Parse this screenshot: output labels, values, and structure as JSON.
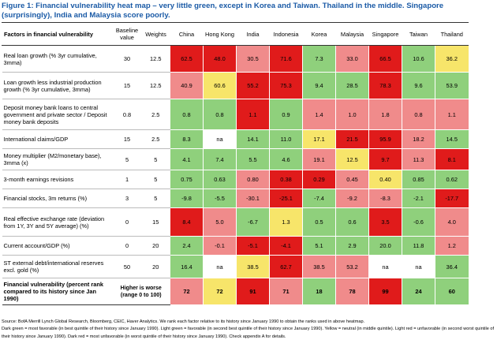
{
  "title": "Figure 1: Financial vulnerability heat map – very little green, except in Korea and Taiwan. Thailand in the middle. Singapore (surprisingly), India and Malaysia score poorly.",
  "headers": {
    "factor": "Factors in financial vulnerability",
    "baseline": "Baseline value",
    "weights": "Weights"
  },
  "legend_colors": {
    "dark_green": "#1fa84a",
    "light_green": "#8fd07c",
    "yellow": "#f7e56a",
    "light_red": "#f08b8b",
    "dark_red": "#e01b1b"
  },
  "chart_data": {
    "type": "heatmap",
    "title": "Financial vulnerability heat map",
    "columns": [
      "China",
      "Hong Kong",
      "India",
      "Indonesia",
      "Korea",
      "Malaysia",
      "Singapore",
      "Taiwan",
      "Thailand"
    ],
    "rows": [
      {
        "factor": "Real loan growth (% 3yr cumulative, 3mma)",
        "baseline": "30",
        "weight": "12.5",
        "values": [
          "62.5",
          "48.0",
          "30.5",
          "71.6",
          "7.3",
          "33.0",
          "66.5",
          "10.6",
          "36.2"
        ],
        "quintile": [
          "dark_red",
          "dark_red",
          "light_red",
          "dark_red",
          "light_green",
          "light_red",
          "dark_red",
          "light_green",
          "yellow"
        ]
      },
      {
        "factor": "Loan growth less industrial production growth (% 3yr cumulative, 3mma)",
        "baseline": "15",
        "weight": "12.5",
        "values": [
          "40.9",
          "60.6",
          "55.2",
          "75.3",
          "9.4",
          "28.5",
          "78.3",
          "9.6",
          "53.9"
        ],
        "quintile": [
          "light_red",
          "yellow",
          "dark_red",
          "dark_red",
          "light_green",
          "light_green",
          "dark_red",
          "light_green",
          "light_green"
        ]
      },
      {
        "factor": "Deposit money bank loans to central government and private sector / Deposit money bank deposits",
        "baseline": "0.8",
        "weight": "2.5",
        "values": [
          "0.8",
          "0.8",
          "1.1",
          "0.9",
          "1.4",
          "1.0",
          "1.8",
          "0.8",
          "1.1"
        ],
        "quintile": [
          "light_green",
          "light_green",
          "dark_red",
          "light_green",
          "light_red",
          "light_red",
          "light_red",
          "light_red",
          "light_red"
        ]
      },
      {
        "factor": "International claims/GDP",
        "baseline": "15",
        "weight": "2.5",
        "values": [
          "8.3",
          "na",
          "14.1",
          "11.0",
          "17.1",
          "21.5",
          "95.9",
          "18.2",
          "14.5"
        ],
        "quintile": [
          "light_green",
          "none",
          "light_green",
          "light_green",
          "yellow",
          "dark_red",
          "dark_red",
          "light_red",
          "light_green"
        ]
      },
      {
        "factor": "Money multiplier (M2/monetary base), 3mma (x)",
        "baseline": "5",
        "weight": "5",
        "values": [
          "4.1",
          "7.4",
          "5.5",
          "4.6",
          "19.1",
          "12.5",
          "9.7",
          "11.3",
          "8.1"
        ],
        "quintile": [
          "light_green",
          "light_green",
          "light_green",
          "light_green",
          "light_red",
          "yellow",
          "dark_red",
          "light_red",
          "dark_red"
        ]
      },
      {
        "factor": "3-month earnings revisions",
        "baseline": "1",
        "weight": "5",
        "values": [
          "0.75",
          "0.63",
          "0.80",
          "0.38",
          "0.29",
          "0.45",
          "0.40",
          "0.85",
          "0.62"
        ],
        "quintile": [
          "light_green",
          "light_green",
          "light_red",
          "dark_red",
          "dark_red",
          "light_red",
          "yellow",
          "light_green",
          "light_green"
        ]
      },
      {
        "factor": "Financial stocks, 3m returns (%)",
        "baseline": "3",
        "weight": "5",
        "values": [
          "-9.8",
          "-5.5",
          "-30.1",
          "-25.1",
          "-7.4",
          "-9.2",
          "-8.3",
          "-2.1",
          "-17.7"
        ],
        "quintile": [
          "light_green",
          "light_green",
          "light_red",
          "dark_red",
          "light_green",
          "light_red",
          "light_red",
          "light_green",
          "dark_red"
        ]
      },
      {
        "factor": "Real effective exchange rate (deviation from 1Y, 3Y and 5Y average) (%)",
        "baseline": "0",
        "weight": "15",
        "values": [
          "8.4",
          "5.0",
          "-6.7",
          "1.3",
          "0.5",
          "0.6",
          "3.5",
          "-0.6",
          "4.0"
        ],
        "quintile": [
          "dark_red",
          "light_red",
          "light_green",
          "yellow",
          "light_green",
          "light_green",
          "dark_red",
          "light_green",
          "light_red"
        ]
      },
      {
        "factor": "Current account/GDP (%)",
        "baseline": "0",
        "weight": "20",
        "values": [
          "2.4",
          "-0.1",
          "-5.1",
          "-4.1",
          "5.1",
          "2.9",
          "20.0",
          "11.8",
          "1.2"
        ],
        "quintile": [
          "light_green",
          "light_red",
          "dark_red",
          "dark_red",
          "light_green",
          "light_green",
          "light_green",
          "light_green",
          "light_red"
        ]
      },
      {
        "factor": "ST external debt/international reserves excl. gold (%)",
        "baseline": "50",
        "weight": "20",
        "values": [
          "16.4",
          "na",
          "38.5",
          "62.7",
          "38.5",
          "53.2",
          "na",
          "na",
          "36.4"
        ],
        "quintile": [
          "light_green",
          "none",
          "yellow",
          "dark_red",
          "light_red",
          "light_red",
          "none",
          "none",
          "light_green"
        ]
      }
    ],
    "score_row": {
      "factor": "Financial vulnerability (percent rank compared to its history since Jan 1990)",
      "note": "Higher is worse (range 0 to 100)",
      "values": [
        "72",
        "72",
        "91",
        "71",
        "18",
        "78",
        "99",
        "24",
        "60"
      ],
      "quintile": [
        "light_red",
        "yellow",
        "dark_red",
        "light_red",
        "light_green",
        "light_red",
        "dark_red",
        "light_green",
        "light_green"
      ]
    }
  },
  "source_note": "Source: BofA Merrill Lynch Global Research, Bloomberg, CEIC, Haver Analytics. We rank each factor relative to its history since January 1990 to obtain the ranks used in above heatmap.",
  "legend_note": "Dark green = most favorable (in best quintile of their history since January 1990). Light green = favorable (in second best quintile of their history since January 1990). Yellow = neutral (in middle quintile). Light red = unfavorable (in second worst quintile of their history since January 1990). Dark red = most unfavorable (in worst quintile of their history since January 1990). Check appendix A for details."
}
